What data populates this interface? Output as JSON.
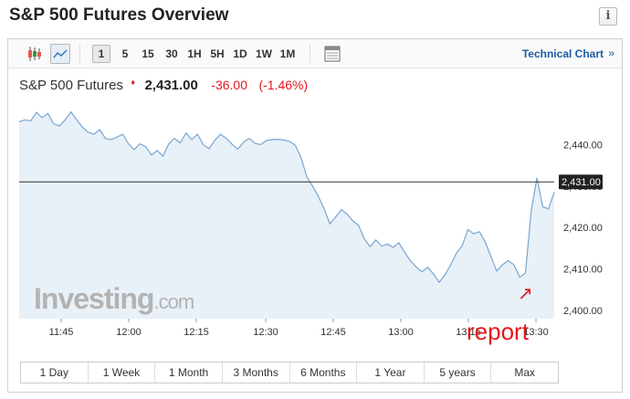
{
  "header": {
    "title": "S&P 500 Futures Overview",
    "info_label": "i"
  },
  "toolbar": {
    "ranges": [
      "1",
      "5",
      "15",
      "30",
      "1H",
      "5H",
      "1D",
      "1W",
      "1M"
    ],
    "active_range": "1",
    "technical_link": "Technical Chart",
    "technical_chevron": "»"
  },
  "quote": {
    "name": "S&P 500 Futures",
    "arrow": "♦",
    "price": "2,431.00",
    "change": "-36.00",
    "change_pct": "(-1.46%)"
  },
  "watermark": {
    "brand": "Investing",
    "suffix": ".com"
  },
  "annotation": {
    "text": "report",
    "arrow": "↗"
  },
  "colors": {
    "line": "#7aa6d2",
    "area": "#e8f0f8",
    "negative": "#e5171c",
    "link": "#1c5da6",
    "price_tag": "#222222"
  },
  "chart_data": {
    "type": "area",
    "x_ticks": [
      "11:45",
      "12:00",
      "12:15",
      "12:30",
      "12:45",
      "13:00",
      "13:15",
      "13:30"
    ],
    "y_ticks": [
      "2,440.00",
      "2,430.00",
      "2,420.00",
      "2,410.00",
      "2,400.00"
    ],
    "ylim": [
      2398,
      2450
    ],
    "reference_value": 2431.0,
    "reference_label": "2,431.00",
    "values": [
      2445.5,
      2446.0,
      2445.7,
      2447.8,
      2446.5,
      2447.5,
      2445.0,
      2444.5,
      2446.0,
      2447.9,
      2446.0,
      2444.2,
      2443.0,
      2442.5,
      2443.6,
      2441.5,
      2441.2,
      2441.8,
      2442.5,
      2440.2,
      2438.8,
      2440.2,
      2439.5,
      2437.5,
      2438.6,
      2437.2,
      2440.2,
      2441.5,
      2440.4,
      2442.8,
      2441.2,
      2442.5,
      2440.0,
      2439.0,
      2441.0,
      2442.5,
      2441.5,
      2440.1,
      2438.9,
      2440.6,
      2441.5,
      2440.3,
      2440.0,
      2441.0,
      2441.2,
      2441.3,
      2441.1,
      2440.8,
      2439.8,
      2436.8,
      2432.2,
      2430.0,
      2427.5,
      2424.5,
      2420.9,
      2422.5,
      2424.3,
      2423.2,
      2421.6,
      2420.5,
      2417.2,
      2415.4,
      2417.0,
      2415.5,
      2416.0,
      2415.2,
      2416.3,
      2414.0,
      2412.0,
      2410.5,
      2409.3,
      2410.4,
      2408.8,
      2406.8,
      2408.5,
      2411.0,
      2413.8,
      2415.6,
      2419.5,
      2418.5,
      2419.0,
      2416.5,
      2413.0,
      2409.5,
      2411.0,
      2412.0,
      2411.0,
      2408.0,
      2409.0,
      2424.0,
      2432.0,
      2425.0,
      2424.5,
      2428.5
    ]
  },
  "periods": [
    "1 Day",
    "1 Week",
    "1 Month",
    "3 Months",
    "6 Months",
    "1 Year",
    "5 years",
    "Max"
  ]
}
